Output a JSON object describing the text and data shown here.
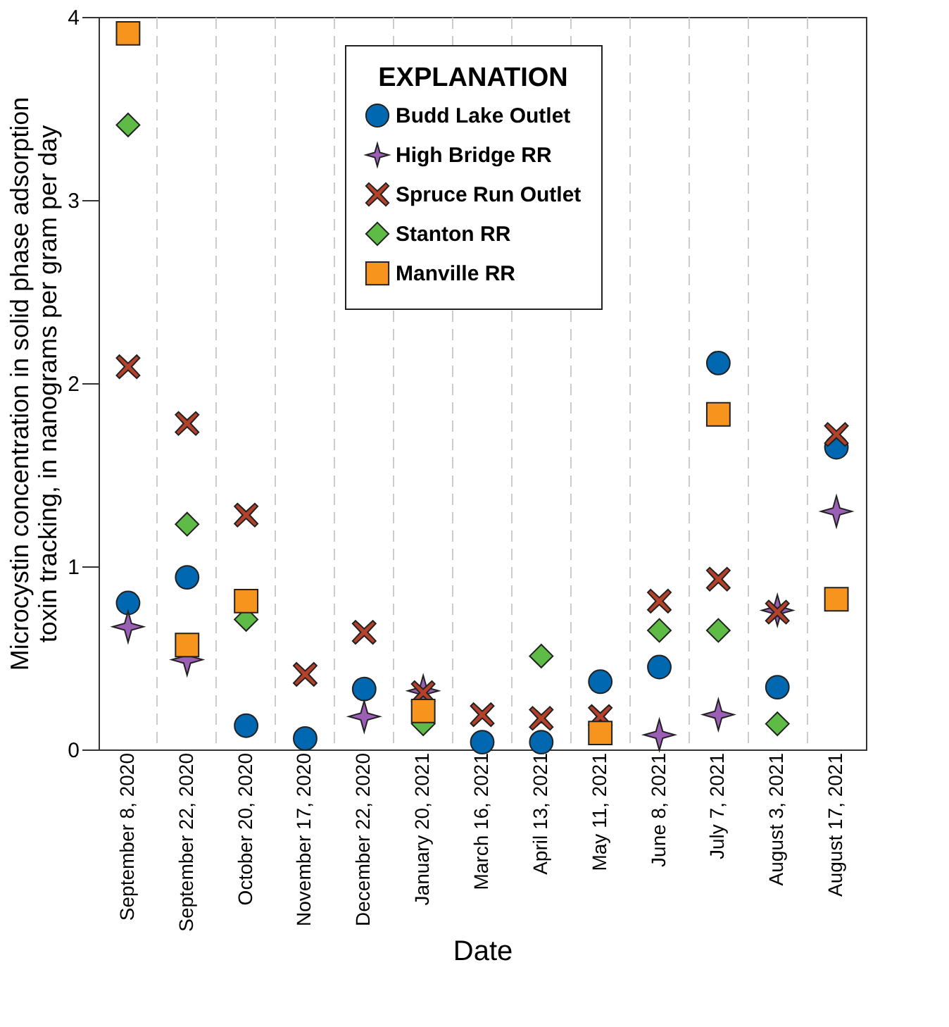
{
  "chart_data": {
    "type": "scatter",
    "xlabel": "Date",
    "ylabel": "Microcystin concentration in solid phase adsorption\ntoxin tracking, in nanograms per gram per day",
    "categories": [
      "September 8, 2020",
      "September 22, 2020",
      "October 20, 2020",
      "November 17, 2020",
      "December 22, 2020",
      "January 20, 2021",
      "March 16, 2021",
      "April 13, 2021",
      "May 11, 2021",
      "June 8, 2021",
      "July 7, 2021",
      "August 3, 2021",
      "August 17, 2021"
    ],
    "ylim": [
      0,
      4
    ],
    "yticks": [
      0,
      1,
      2,
      3,
      4
    ],
    "grid": "x",
    "legend": "top",
    "legend_title": "EXPLANATION",
    "series": [
      {
        "name": "Budd Lake Outlet",
        "color": "#0067b1",
        "marker": "circle",
        "values": [
          0.8,
          0.94,
          0.13,
          0.06,
          0.33,
          null,
          0.04,
          0.04,
          0.37,
          0.45,
          2.11,
          0.34,
          1.65
        ]
      },
      {
        "name": "High Bridge RR",
        "color": "#9b5fb5",
        "marker": "star",
        "values": [
          0.67,
          0.49,
          null,
          null,
          0.18,
          0.32,
          null,
          null,
          null,
          0.08,
          0.19,
          0.76,
          1.3
        ]
      },
      {
        "name": "Spruce Run Outlet",
        "color": "#b5412a",
        "marker": "cross",
        "values": [
          2.09,
          1.78,
          1.28,
          0.41,
          0.64,
          0.31,
          0.19,
          0.17,
          0.18,
          0.81,
          0.93,
          0.75,
          1.72
        ]
      },
      {
        "name": "Stanton RR",
        "color": "#5dbb46",
        "marker": "diamond",
        "values": [
          3.41,
          1.23,
          0.71,
          null,
          null,
          0.14,
          null,
          0.51,
          null,
          0.65,
          0.65,
          0.14,
          null
        ]
      },
      {
        "name": "Manville RR",
        "color": "#f7941d",
        "marker": "square",
        "values": [
          3.91,
          0.57,
          0.81,
          null,
          null,
          0.21,
          null,
          null,
          0.09,
          null,
          1.83,
          null,
          0.82
        ]
      }
    ]
  }
}
